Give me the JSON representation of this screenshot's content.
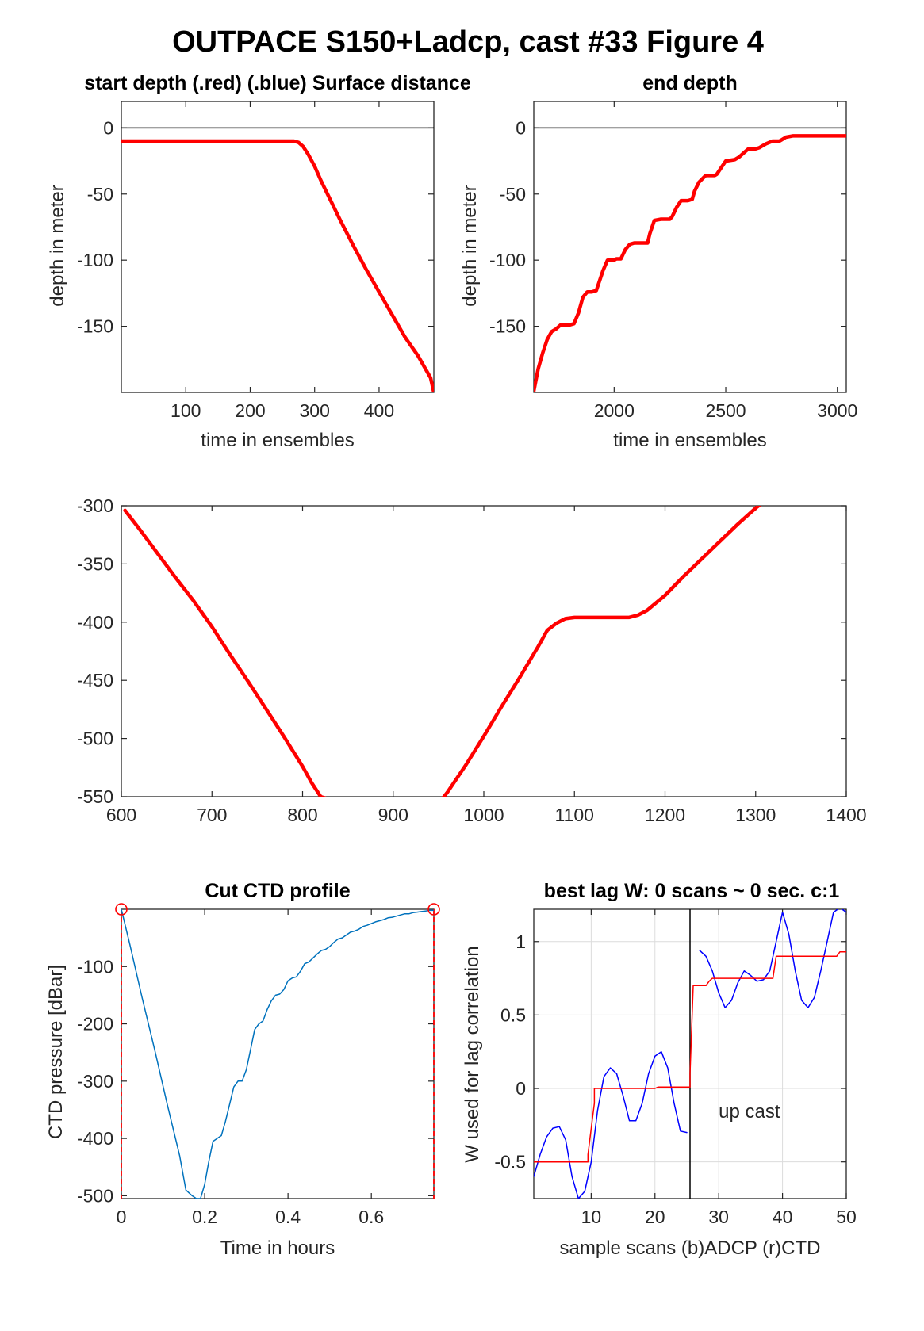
{
  "figure_title": "OUTPACE S150+Ladcp, cast #33    Figure 4",
  "colors": {
    "red": "#ff0000",
    "blue": "#0000ff",
    "ctd_blue": "#0072bd",
    "black": "#000000",
    "grid": "#dcdcdc"
  },
  "chart_data": [
    {
      "id": "p1",
      "type": "line",
      "title": "start depth (.red) (.blue) Surface distance",
      "xlabel": "time in ensembles",
      "ylabel": "depth in meter",
      "xlim": [
        0,
        485
      ],
      "ylim": [
        -200,
        20
      ],
      "xticks": [
        100,
        200,
        300,
        400
      ],
      "yticks": [
        0,
        -50,
        -100,
        -150
      ],
      "grid": false,
      "hline": 0,
      "series": [
        {
          "color": "red",
          "width": 4.5,
          "x": [
            0,
            100,
            200,
            268,
            275,
            282,
            290,
            300,
            310,
            325,
            340,
            360,
            380,
            400,
            420,
            440,
            460,
            480,
            485
          ],
          "y": [
            -10,
            -10,
            -10,
            -10,
            -11,
            -14,
            -20,
            -29,
            -40,
            -55,
            -70,
            -89,
            -107,
            -124,
            -141,
            -158,
            -172,
            -189,
            -200
          ]
        }
      ]
    },
    {
      "id": "p2",
      "type": "line",
      "title": "end depth",
      "xlabel": "time in ensembles",
      "ylabel": "depth in meter",
      "xlim": [
        1640,
        3040
      ],
      "ylim": [
        -200,
        20
      ],
      "xticks": [
        2000,
        2500,
        3000
      ],
      "yticks": [
        0,
        -50,
        -100,
        -150
      ],
      "grid": false,
      "hline": 0,
      "series": [
        {
          "color": "red",
          "width": 4.5,
          "x": [
            1640,
            1660,
            1680,
            1700,
            1720,
            1740,
            1760,
            1800,
            1820,
            1840,
            1860,
            1880,
            1900,
            1920,
            1930,
            1950,
            1970,
            2000,
            2010,
            2030,
            2050,
            2070,
            2090,
            2100,
            2150,
            2160,
            2180,
            2210,
            2250,
            2260,
            2280,
            2300,
            2330,
            2350,
            2360,
            2380,
            2410,
            2450,
            2460,
            2480,
            2500,
            2540,
            2560,
            2580,
            2600,
            2630,
            2650,
            2660,
            2680,
            2710,
            2740,
            2750,
            2770,
            2800,
            2820,
            2830,
            2850,
            2880,
            2900,
            2920,
            2950,
            2980,
            3040
          ],
          "y": [
            -199,
            -182,
            -170,
            -160,
            -154,
            -152,
            -149,
            -149,
            -148,
            -140,
            -128,
            -124,
            -124,
            -123,
            -118,
            -108,
            -100,
            -100,
            -99,
            -99,
            -92,
            -88,
            -87,
            -87,
            -87,
            -80,
            -70,
            -69,
            -69,
            -67,
            -60,
            -55,
            -55,
            -54,
            -48,
            -41,
            -36,
            -36,
            -35,
            -30,
            -25,
            -24,
            -22,
            -19,
            -16,
            -16,
            -15,
            -14,
            -12,
            -10,
            -10,
            -9,
            -7,
            -6,
            -6,
            -6,
            -6,
            -6,
            -6,
            -6,
            -6,
            -6,
            -6
          ]
        }
      ]
    },
    {
      "id": "p3",
      "type": "line",
      "title": "",
      "xlabel": "",
      "ylabel": "",
      "xlim": [
        600,
        1400
      ],
      "ylim": [
        -550,
        -300
      ],
      "xticks": [
        600,
        700,
        800,
        900,
        1000,
        1100,
        1200,
        1300,
        1400
      ],
      "yticks": [
        -300,
        -350,
        -400,
        -450,
        -500,
        -550
      ],
      "grid": false,
      "series": [
        {
          "color": "red",
          "width": 4.5,
          "x": [
            604,
            620,
            640,
            660,
            680,
            700,
            720,
            740,
            760,
            780,
            800,
            810,
            820,
            840,
            860,
            880,
            900,
            920,
            930,
            940,
            950,
            960,
            980,
            1000,
            1020,
            1040,
            1060,
            1070,
            1080,
            1090,
            1100,
            1120,
            1140,
            1160,
            1170,
            1180,
            1200,
            1220,
            1240,
            1260,
            1280,
            1300,
            1310,
            1318
          ],
          "y": [
            -304,
            -320,
            -341,
            -362,
            -382,
            -404,
            -428,
            -451,
            -475,
            -499,
            -524,
            -538,
            -550,
            -555,
            -562,
            -565,
            -567,
            -569,
            -569,
            -565,
            -556,
            -546,
            -523,
            -498,
            -472,
            -447,
            -421,
            -407,
            -401,
            -397,
            -396,
            -396,
            -396,
            -396,
            -394,
            -390,
            -377,
            -361,
            -346,
            -331,
            -316,
            -302,
            -296,
            -293
          ]
        }
      ]
    },
    {
      "id": "p4",
      "type": "line",
      "title": "Cut CTD profile",
      "xlabel": "Time in hours",
      "ylabel": "CTD pressure [dBar]",
      "xlim": [
        0,
        0.75
      ],
      "ylim": [
        -505,
        0
      ],
      "xticks": [
        0,
        0.2,
        0.4,
        0.6
      ],
      "xtick_labels": [
        "0",
        "0.2",
        "0.4",
        "0.6"
      ],
      "yticks": [
        -100,
        -200,
        -300,
        -400,
        -500
      ],
      "grid": false,
      "series": [
        {
          "color": "ctd_blue",
          "width": 1.5,
          "x": [
            0.0,
            0.02,
            0.05,
            0.08,
            0.11,
            0.14,
            0.155,
            0.17,
            0.18,
            0.19,
            0.2,
            0.21,
            0.22,
            0.23,
            0.24,
            0.25,
            0.26,
            0.27,
            0.28,
            0.29,
            0.3,
            0.31,
            0.32,
            0.33,
            0.34,
            0.35,
            0.36,
            0.37,
            0.38,
            0.39,
            0.4,
            0.41,
            0.42,
            0.43,
            0.44,
            0.45,
            0.46,
            0.47,
            0.48,
            0.49,
            0.5,
            0.51,
            0.52,
            0.53,
            0.54,
            0.55,
            0.56,
            0.57,
            0.58,
            0.59,
            0.6,
            0.61,
            0.62,
            0.63,
            0.64,
            0.65,
            0.66,
            0.67,
            0.68,
            0.69,
            0.7,
            0.71,
            0.72,
            0.73,
            0.74,
            0.75
          ],
          "y": [
            0,
            -60,
            -155,
            -245,
            -340,
            -430,
            -490,
            -500,
            -505,
            -505,
            -480,
            -440,
            -405,
            -400,
            -395,
            -370,
            -340,
            -310,
            -300,
            -300,
            -280,
            -245,
            -210,
            -200,
            -195,
            -175,
            -160,
            -150,
            -148,
            -140,
            -125,
            -120,
            -118,
            -108,
            -95,
            -92,
            -85,
            -78,
            -72,
            -70,
            -65,
            -58,
            -52,
            -50,
            -45,
            -40,
            -38,
            -35,
            -30,
            -28,
            -25,
            -22,
            -20,
            -18,
            -15,
            -14,
            -12,
            -10,
            -8,
            -8,
            -6,
            -5,
            -4,
            -3,
            -2,
            -2
          ]
        }
      ],
      "endpoints": [
        {
          "x": 0.0,
          "y": 0
        },
        {
          "x": 0.75,
          "y": 0
        }
      ],
      "dashed_vlines": [
        0.0,
        0.75
      ]
    },
    {
      "id": "p5",
      "type": "line",
      "title": "best lag W: 0 scans ~ 0 sec.  c:1",
      "xlabel": "sample scans (b)ADCP (r)CTD",
      "ylabel": "W used for lag correlation",
      "xlim": [
        1,
        50
      ],
      "ylim": [
        -0.75,
        1.22
      ],
      "xticks": [
        10,
        20,
        30,
        40,
        50
      ],
      "yticks": [
        -0.5,
        0,
        0.5,
        1
      ],
      "ytick_labels": [
        "-0.5",
        "0",
        "0.5",
        "1"
      ],
      "grid": true,
      "vline": 25.5,
      "annotation": {
        "text": "up cast",
        "x": 30,
        "y": -0.2
      },
      "series": [
        {
          "color": "blue",
          "width": 1.5,
          "x": [
            1,
            2,
            3,
            4,
            5,
            6,
            7,
            8,
            9,
            10,
            11,
            12,
            13,
            14,
            15,
            16,
            17,
            18,
            19,
            20,
            21,
            22,
            23,
            24,
            25
          ],
          "y": [
            -0.6,
            -0.45,
            -0.33,
            -0.27,
            -0.26,
            -0.35,
            -0.6,
            -0.75,
            -0.7,
            -0.5,
            -0.15,
            0.08,
            0.14,
            0.1,
            -0.05,
            -0.22,
            -0.22,
            -0.1,
            0.1,
            0.22,
            0.25,
            0.14,
            -0.1,
            -0.29,
            -0.3
          ]
        },
        {
          "color": "blue",
          "width": 1.5,
          "x": [
            27,
            28,
            29,
            30,
            31,
            32,
            33,
            34,
            35,
            36,
            37,
            38,
            39,
            40,
            41,
            42,
            43,
            44,
            45,
            46,
            47,
            48,
            49,
            50
          ],
          "y": [
            0.94,
            0.9,
            0.8,
            0.65,
            0.55,
            0.6,
            0.72,
            0.8,
            0.77,
            0.73,
            0.74,
            0.8,
            1.0,
            1.2,
            1.05,
            0.8,
            0.6,
            0.55,
            0.62,
            0.8,
            1.0,
            1.2,
            1.23,
            1.2
          ]
        },
        {
          "color": "red",
          "width": 1.5,
          "x": [
            1,
            9.5,
            9.5,
            10.5,
            10.5,
            20,
            20.5,
            25.5,
            25.5,
            26,
            26,
            28,
            28.5,
            29,
            30,
            32,
            38.5,
            39,
            48.5,
            49,
            50
          ],
          "y": [
            -0.5,
            -0.5,
            -0.45,
            -0.1,
            0,
            0,
            0.01,
            0.01,
            0.1,
            0.7,
            0.7,
            0.7,
            0.73,
            0.75,
            0.75,
            0.75,
            0.75,
            0.9,
            0.9,
            0.93,
            0.93
          ]
        }
      ]
    }
  ]
}
